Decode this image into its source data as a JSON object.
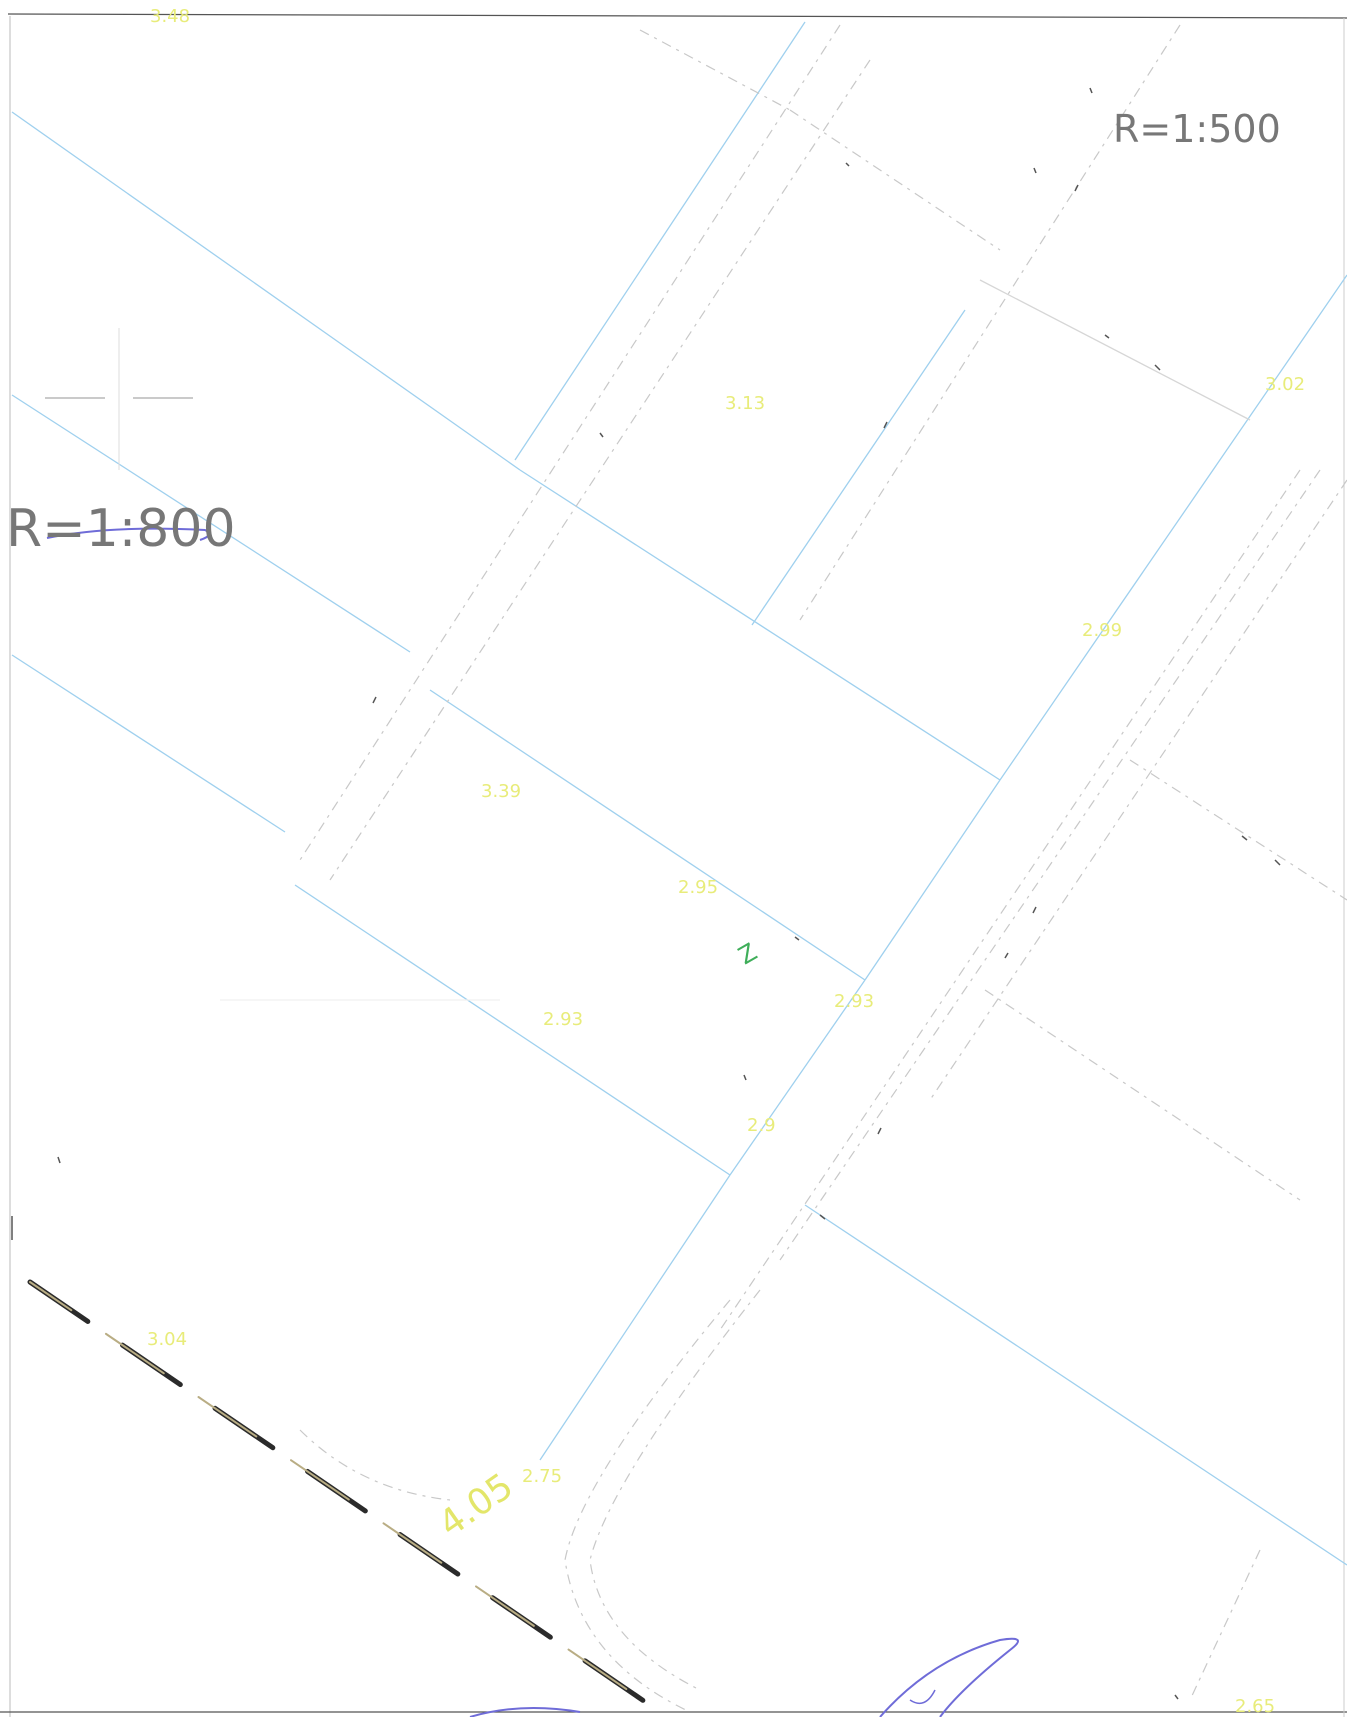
{
  "scale_labels": {
    "top_right": "R=1:500",
    "left": "R=1:800"
  },
  "point_marker": "Z",
  "elevation_points": [
    {
      "id": "e1",
      "label": "3.48"
    },
    {
      "id": "e2",
      "label": "3.13"
    },
    {
      "id": "e3",
      "label": "3.02"
    },
    {
      "id": "e4",
      "label": "2.99"
    },
    {
      "id": "e5",
      "label": "3.39"
    },
    {
      "id": "e6",
      "label": "2.95"
    },
    {
      "id": "e7",
      "label": "2.93"
    },
    {
      "id": "e8",
      "label": "2.93"
    },
    {
      "id": "e9",
      "label": "2.9"
    },
    {
      "id": "e10",
      "label": "3.04"
    },
    {
      "id": "e11",
      "label": "4.05"
    },
    {
      "id": "e12",
      "label": "2.75"
    },
    {
      "id": "e13",
      "label": "2.65"
    }
  ],
  "colors": {
    "parcel_lines": "#9fd0ee",
    "road_lines": "#c8c8c8",
    "elevation_text": "#e8ec7a",
    "scale_text": "#777777",
    "marker": "#3fae5a",
    "signature_ink": "#6f6cd8",
    "boundary_dash": "#2b2b2b"
  }
}
